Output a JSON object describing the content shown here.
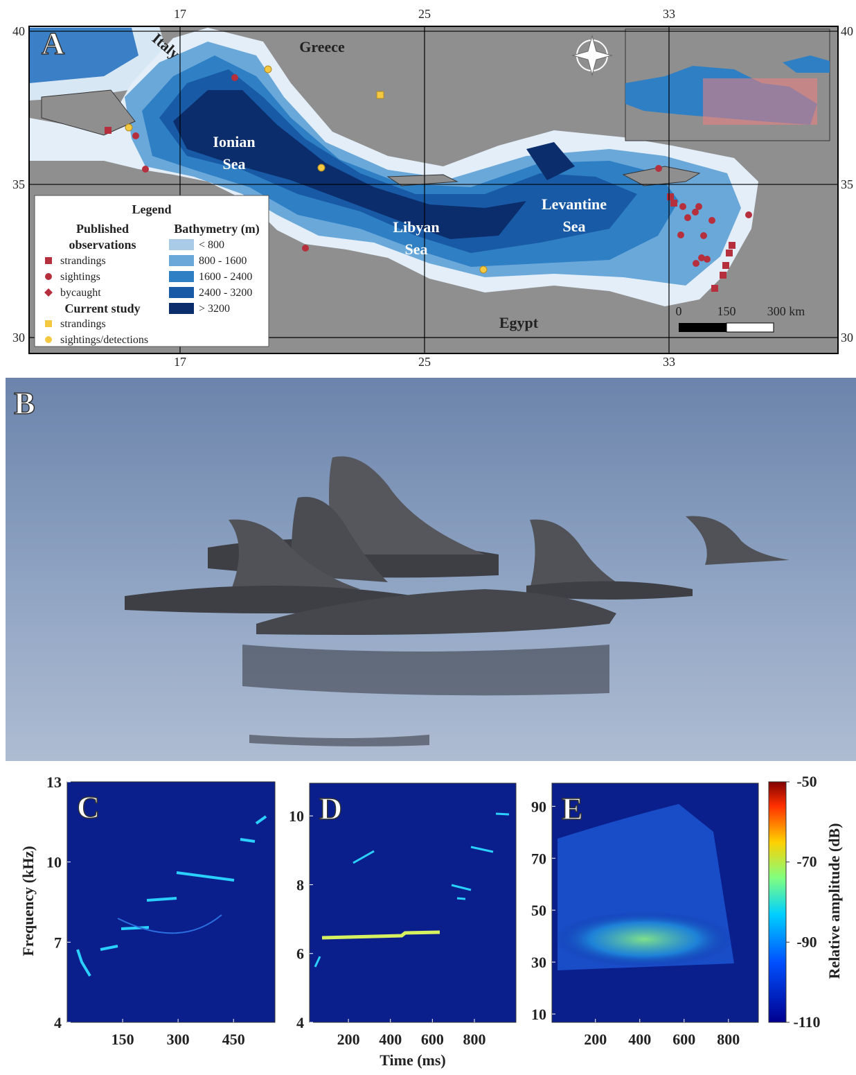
{
  "map": {
    "panel_label": "A",
    "xlim": [
      12.06,
      38.53
    ],
    "ylim": [
      29.48,
      40.16
    ],
    "lon_ticks": [
      17,
      25,
      33
    ],
    "lat_ticks": [
      30,
      35,
      40
    ],
    "places": [
      [
        "Italy"
      ],
      [
        "Greece"
      ],
      [
        "Ionian",
        "Sea"
      ],
      [
        "Libyan",
        "Sea"
      ],
      [
        "Levantine",
        "Sea"
      ],
      [
        "Egypt"
      ]
    ],
    "legend": {
      "title": "Legend",
      "published_heading": [
        "Published",
        "observations"
      ],
      "published_items": [
        "strandings",
        "sightings",
        "bycaught"
      ],
      "current_heading": "Current study",
      "current_items": [
        "strandings",
        "sightings/detections"
      ],
      "bathymetry_heading": "Bathymetry (m)",
      "bathymetry_items": [
        "< 800",
        "800 - 1600",
        "1600 - 2400",
        "2400 - 3200",
        "> 3200"
      ],
      "bathymetry_colors": [
        "#a9cbe8",
        "#6aa8da",
        "#2f7fc4",
        "#185aa6",
        "#0b2d6b"
      ]
    },
    "scale_bar": [
      "0",
      "150",
      "300 km"
    ]
  },
  "photo": {
    "panel_label": "B"
  },
  "spectrograms": [
    {
      "panel_label": "C",
      "xlim": [
        0,
        562
      ],
      "ylim": [
        4,
        13
      ],
      "xticks": [
        150,
        300,
        450
      ],
      "yticks": [
        4,
        7,
        10,
        13
      ]
    },
    {
      "panel_label": "D",
      "xlim": [
        15,
        998
      ],
      "ylim": [
        4,
        10.95
      ],
      "xticks": [
        200,
        400,
        600,
        800
      ],
      "yticks": [
        4,
        6,
        8,
        10
      ]
    },
    {
      "panel_label": "E",
      "xlim": [
        4,
        935
      ],
      "ylim": [
        6.8,
        98.9
      ],
      "xticks": [
        200,
        400,
        600,
        800
      ],
      "yticks": [
        10,
        30,
        50,
        70,
        90
      ]
    }
  ],
  "y_axis_label": "Frequency (kHz)",
  "x_axis_label": "Time (ms)",
  "colorbar": {
    "label": "Relative amplitude (dB)",
    "ylim": [
      -110,
      -50
    ],
    "yticks": [
      -110,
      -90,
      -70,
      -50
    ]
  }
}
